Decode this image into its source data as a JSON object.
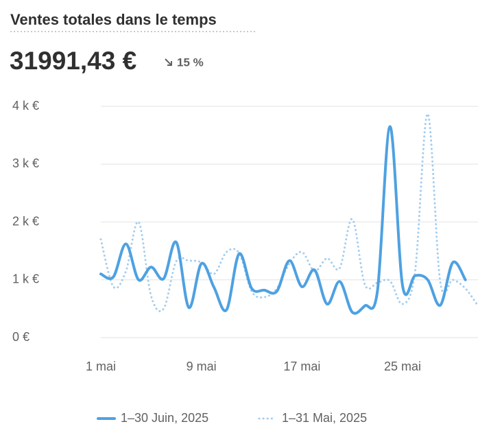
{
  "chart_data": {
    "type": "line",
    "title": "Ventes totales dans le temps",
    "total_value": "31991,43 €",
    "change": "15 %",
    "categories": [
      "1 mai",
      null,
      null,
      null,
      null,
      null,
      null,
      null,
      "9 mai",
      null,
      null,
      null,
      null,
      null,
      null,
      null,
      "17 mai",
      null,
      null,
      null,
      null,
      null,
      null,
      null,
      "25 mai",
      null,
      null,
      null,
      null,
      null,
      null
    ],
    "series": [
      {
        "name": "1–30 Juin, 2025",
        "color": "#4ea1e1",
        "style": "solid",
        "values": [
          1100,
          1050,
          1620,
          1000,
          1220,
          1020,
          1650,
          520,
          1280,
          870,
          480,
          1450,
          850,
          820,
          800,
          1330,
          880,
          1170,
          580,
          970,
          440,
          550,
          800,
          3650,
          900,
          1070,
          1000,
          560,
          1300,
          1000,
          null
        ]
      },
      {
        "name": "1–31 Mai, 2025",
        "color": "#a3cdee",
        "style": "dotted",
        "values": [
          1700,
          880,
          1150,
          2000,
          720,
          500,
          1320,
          1330,
          1300,
          1100,
          1480,
          1460,
          800,
          700,
          850,
          1280,
          1480,
          1150,
          1370,
          1200,
          2050,
          920,
          950,
          980,
          580,
          1150,
          3870,
          960,
          1000,
          850,
          550
        ]
      }
    ],
    "ylim": [
      0,
      4000
    ],
    "yticks": [
      {
        "value": 0,
        "label": "0 €"
      },
      {
        "value": 1000,
        "label": "1 k €"
      },
      {
        "value": 2000,
        "label": "2 k €"
      },
      {
        "value": 3000,
        "label": "3 k €"
      },
      {
        "value": 4000,
        "label": "4 k €"
      }
    ],
    "grid": true
  }
}
